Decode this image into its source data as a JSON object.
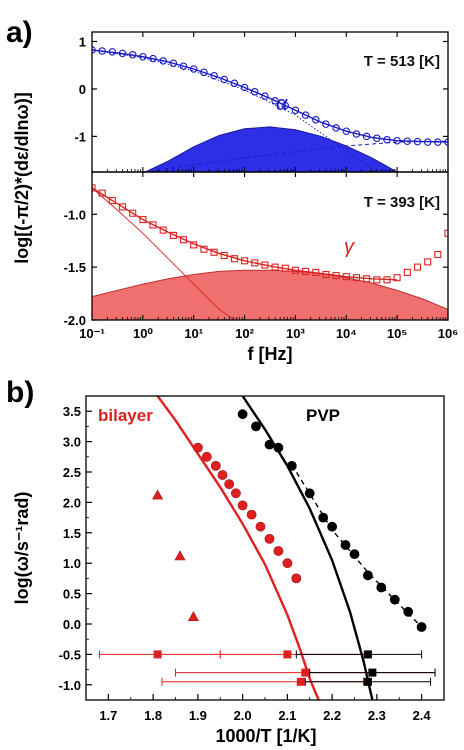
{
  "chart_data": [
    {
      "panel_label": "a)",
      "type": "scatter",
      "ylabel": "log[(-π/2)*(dε/dlnω)]",
      "xlabel": "f [Hz]",
      "xscale": "log",
      "xlim": [
        0.1,
        1000000
      ],
      "x_tick_labels": [
        "10⁻¹",
        "10⁰",
        "10¹",
        "10²",
        "10³",
        "10⁴",
        "10⁵",
        "10⁶"
      ],
      "subplots": [
        {
          "annotation": "T = 513 [K]",
          "process_label": "α",
          "ylim": [
            -1.75,
            1.2
          ],
          "y_tick_labels": [
            "1",
            "0",
            "-1"
          ],
          "colors": {
            "marker": "#1a1ac8",
            "fill": "#2e2ee6"
          },
          "series": [
            {
              "kind": "data",
              "x_log10": [
                -1.0,
                -0.8,
                -0.6,
                -0.4,
                -0.2,
                0.0,
                0.2,
                0.4,
                0.6,
                0.8,
                1.0,
                1.2,
                1.4,
                1.6,
                1.8,
                2.0,
                2.2,
                2.4,
                2.6,
                2.8,
                3.0,
                3.2,
                3.4,
                3.6,
                3.8,
                4.0,
                4.2,
                4.4,
                4.6,
                4.8,
                5.0,
                5.2,
                5.4,
                5.6,
                5.8,
                6.0
              ],
              "y": [
                0.82,
                0.8,
                0.78,
                0.75,
                0.72,
                0.68,
                0.64,
                0.59,
                0.54,
                0.48,
                0.42,
                0.35,
                0.28,
                0.2,
                0.12,
                0.03,
                -0.06,
                -0.15,
                -0.25,
                -0.35,
                -0.45,
                -0.55,
                -0.65,
                -0.74,
                -0.82,
                -0.89,
                -0.95,
                -1.0,
                -1.04,
                -1.07,
                -1.09,
                -1.1,
                -1.11,
                -1.12,
                -1.12,
                -1.12
              ]
            },
            {
              "kind": "fit",
              "x_log10": [
                -1.0,
                -0.5,
                0.0,
                0.5,
                1.0,
                1.5,
                2.0,
                2.5,
                3.0,
                3.5,
                4.0,
                4.5,
                5.0,
                5.5,
                6.0
              ],
              "y": [
                0.82,
                0.76,
                0.68,
                0.57,
                0.42,
                0.24,
                0.03,
                -0.2,
                -0.45,
                -0.7,
                -0.89,
                -1.02,
                -1.09,
                -1.11,
                -1.12
              ]
            },
            {
              "kind": "dotted-component",
              "x_log10": [
                -1.0,
                0.0,
                1.0,
                2.0,
                3.0,
                4.0,
                4.6
              ],
              "y": [
                0.82,
                0.66,
                0.38,
                -0.02,
                -0.55,
                -1.3,
                -1.75
              ]
            },
            {
              "kind": "dashed-component",
              "x_log10": [
                0.0,
                1.0,
                2.0,
                3.0,
                4.0,
                5.0,
                6.0
              ],
              "y": [
                -1.75,
                -1.6,
                -1.45,
                -1.32,
                -1.2,
                -1.12,
                -1.1
              ]
            },
            {
              "kind": "filled-peak",
              "x_log10": [
                0.05,
                0.5,
                1.0,
                1.5,
                2.0,
                2.5,
                3.0,
                3.5,
                4.0,
                4.5,
                5.0
              ],
              "y": [
                -1.75,
                -1.52,
                -1.22,
                -0.98,
                -0.84,
                -0.8,
                -0.86,
                -1.0,
                -1.2,
                -1.45,
                -1.75
              ]
            }
          ]
        },
        {
          "annotation": "T = 393 [K]",
          "process_label": "γ",
          "ylim": [
            -2.0,
            -0.6
          ],
          "y_tick_labels": [
            "-1.0",
            "-1.5",
            "-2.0"
          ],
          "colors": {
            "marker": "#dd2222",
            "fill": "#f07070"
          },
          "series": [
            {
              "kind": "data",
              "x_log10": [
                -1.0,
                -0.8,
                -0.6,
                -0.4,
                -0.2,
                0.0,
                0.2,
                0.4,
                0.6,
                0.8,
                1.0,
                1.2,
                1.4,
                1.6,
                1.8,
                2.0,
                2.2,
                2.4,
                2.6,
                2.8,
                3.0,
                3.2,
                3.4,
                3.6,
                3.8,
                4.0,
                4.2,
                4.4,
                4.6,
                4.8,
                5.0,
                5.2,
                5.4,
                5.6,
                5.8,
                6.0
              ],
              "y": [
                -0.75,
                -0.8,
                -0.87,
                -0.93,
                -0.99,
                -1.05,
                -1.1,
                -1.15,
                -1.2,
                -1.24,
                -1.29,
                -1.33,
                -1.36,
                -1.39,
                -1.42,
                -1.44,
                -1.46,
                -1.48,
                -1.5,
                -1.51,
                -1.53,
                -1.54,
                -1.55,
                -1.57,
                -1.58,
                -1.59,
                -1.6,
                -1.61,
                -1.62,
                -1.62,
                -1.6,
                -1.55,
                -1.5,
                -1.45,
                -1.38,
                -1.18
              ]
            },
            {
              "kind": "fit",
              "x_log10": [
                -1.0,
                -0.5,
                0.0,
                0.5,
                1.0,
                1.5,
                2.0,
                2.5,
                3.0,
                3.5,
                4.0,
                4.5,
                5.0
              ],
              "y": [
                -0.75,
                -0.9,
                -1.05,
                -1.17,
                -1.28,
                -1.37,
                -1.44,
                -1.49,
                -1.53,
                -1.56,
                -1.59,
                -1.61,
                -1.62
              ]
            },
            {
              "kind": "line-component",
              "x_log10": [
                -1.0,
                -0.5,
                0.0,
                0.5,
                1.0,
                1.5,
                1.8
              ],
              "y": [
                -0.75,
                -0.96,
                -1.18,
                -1.42,
                -1.66,
                -1.9,
                -2.0
              ]
            },
            {
              "kind": "filled-peak",
              "x_log10": [
                -1.0,
                -0.5,
                0.0,
                0.5,
                1.0,
                1.5,
                2.0,
                2.5,
                3.0,
                3.5,
                4.0,
                4.5,
                5.0,
                5.5,
                6.0
              ],
              "y": [
                -1.78,
                -1.72,
                -1.66,
                -1.61,
                -1.57,
                -1.54,
                -1.53,
                -1.53,
                -1.54,
                -1.56,
                -1.6,
                -1.65,
                -1.72,
                -1.8,
                -1.9
              ]
            }
          ]
        }
      ]
    },
    {
      "panel_label": "b)",
      "type": "scatter",
      "xlabel": "1000/T [1/K]",
      "ylabel": "log(ω/s⁻¹rad)",
      "xlim": [
        1.65,
        2.45
      ],
      "ylim": [
        -1.25,
        3.75
      ],
      "x_tick_labels": [
        "1.7",
        "1.8",
        "1.9",
        "2.0",
        "2.1",
        "2.2",
        "2.3",
        "2.4"
      ],
      "y_tick_labels": [
        "3.5",
        "3.0",
        "2.5",
        "2.0",
        "1.5",
        "1.0",
        "0.5",
        "0.0",
        "-0.5",
        "-1.0"
      ],
      "labels": {
        "bilayer": "bilayer",
        "pvp": "PVP"
      },
      "colors": {
        "bilayer": "#e02020",
        "pvp": "#000000"
      },
      "series": [
        {
          "kind": "bilayer-circles",
          "x": [
            1.9,
            1.92,
            1.94,
            1.955,
            1.97,
            1.985,
            2.0,
            2.02,
            2.04,
            2.06,
            2.08,
            2.1,
            2.12
          ],
          "y": [
            2.9,
            2.75,
            2.6,
            2.45,
            2.3,
            2.15,
            1.95,
            1.8,
            1.6,
            1.4,
            1.2,
            1.0,
            0.75
          ]
        },
        {
          "kind": "bilayer-triangles",
          "x": [
            1.81,
            1.86,
            1.89
          ],
          "y": [
            2.12,
            1.12,
            0.12
          ]
        },
        {
          "kind": "pvp-circles",
          "x": [
            2.0,
            2.03,
            2.06,
            2.08,
            2.11,
            2.15,
            2.18,
            2.2,
            2.23,
            2.25,
            2.28,
            2.31,
            2.34,
            2.37,
            2.4
          ],
          "y": [
            3.45,
            3.25,
            2.95,
            2.9,
            2.6,
            2.15,
            1.75,
            1.6,
            1.3,
            1.15,
            0.8,
            0.6,
            0.4,
            0.2,
            -0.05
          ]
        },
        {
          "kind": "pvp-dashed-fit",
          "x": [
            2.11,
            2.2,
            2.28,
            2.35,
            2.4
          ],
          "y": [
            2.62,
            1.55,
            0.85,
            0.32,
            -0.05
          ]
        },
        {
          "kind": "bilayer-vft-curve",
          "x": [
            1.81,
            1.85,
            1.9,
            1.95,
            2.0,
            2.05,
            2.1,
            2.13,
            2.15,
            2.17
          ],
          "y": [
            3.75,
            3.35,
            2.8,
            2.25,
            1.65,
            0.98,
            0.15,
            -0.45,
            -0.9,
            -1.25
          ]
        },
        {
          "kind": "pvp-vft-curve",
          "x": [
            2.0,
            2.05,
            2.1,
            2.15,
            2.2,
            2.24,
            2.27,
            2.29
          ],
          "y": [
            3.75,
            3.2,
            2.6,
            1.9,
            1.05,
            0.2,
            -0.6,
            -1.25
          ]
        },
        {
          "kind": "bilayer-squares",
          "x": [
            1.81,
            2.1,
            2.14,
            2.13
          ],
          "y": [
            -0.5,
            -0.5,
            -0.8,
            -0.95
          ],
          "xerr_low": [
            1.68,
            1.95,
            1.85,
            1.82
          ],
          "xerr_high": [
            1.95,
            2.28,
            2.43,
            2.27
          ]
        },
        {
          "kind": "pvp-squares",
          "x": [
            2.28,
            2.29,
            2.28
          ],
          "y": [
            -0.5,
            -0.8,
            -0.95
          ],
          "xerr_low": [
            2.12,
            2.15,
            2.14
          ],
          "xerr_high": [
            2.4,
            2.43,
            2.42
          ]
        }
      ]
    }
  ]
}
